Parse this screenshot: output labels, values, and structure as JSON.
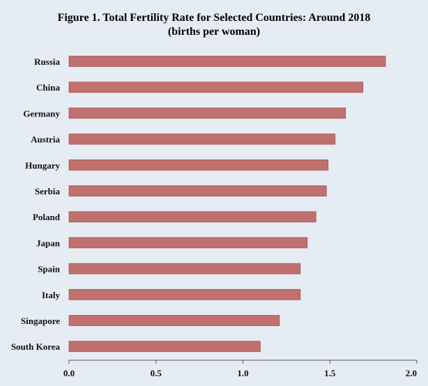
{
  "colors": {
    "background": "#e6ecf4",
    "bar": "#c0706d",
    "bar_edge": "#a85a57",
    "axis": "#555555",
    "text": "#111111"
  },
  "chart_data": {
    "type": "bar",
    "orientation": "horizontal",
    "title": "Figure 1. Total Fertility Rate for Selected Countries: Around 2018",
    "subtitle": "(births per woman)",
    "xlabel": "",
    "ylabel": "",
    "xlim": [
      0,
      2.0
    ],
    "ticks": [
      0,
      0.5,
      1.0,
      1.5,
      2.0
    ],
    "tick_labels": [
      "0.0",
      "0.5",
      "1.0",
      "1.5",
      "2.0"
    ],
    "grid": false,
    "categories": [
      "Russia",
      "China",
      "Germany",
      "Austria",
      "Hungary",
      "Serbia",
      "Poland",
      "Japan",
      "Spain",
      "Italy",
      "Singapore",
      "South Korea"
    ],
    "values": [
      1.82,
      1.69,
      1.59,
      1.53,
      1.49,
      1.48,
      1.42,
      1.37,
      1.33,
      1.33,
      1.21,
      1.1
    ]
  }
}
